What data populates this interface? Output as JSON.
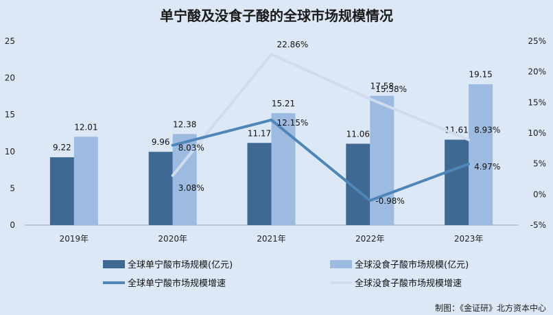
{
  "chart_data": {
    "type": "bar",
    "title": "单宁酸及没食子酸的全球市场规模情况",
    "categories": [
      "2019年",
      "2020年",
      "2021年",
      "2022年",
      "2023年"
    ],
    "series": [
      {
        "name": "全球单宁酸市场规模(亿元)",
        "type": "bar",
        "axis": "left",
        "color": "#3f6892",
        "values": [
          9.22,
          9.96,
          11.17,
          11.06,
          11.61
        ],
        "labels": [
          "9.22",
          "9.96",
          "11.17",
          "11.06",
          "11.61"
        ]
      },
      {
        "name": "全球没食子酸市场规模(亿元)",
        "type": "bar",
        "axis": "left",
        "color": "#9dbbe0",
        "values": [
          12.01,
          12.38,
          15.21,
          17.58,
          19.15
        ],
        "labels": [
          "12.01",
          "12.38",
          "15.21",
          "17.58",
          "19.15"
        ]
      },
      {
        "name": "全球单宁酸市场规模增速",
        "type": "line",
        "axis": "right",
        "color": "#4f86b8",
        "values": [
          null,
          8.03,
          12.15,
          -0.98,
          4.97
        ],
        "labels": [
          "",
          "8.03%",
          "12.15%",
          "-0.98%",
          "4.97%"
        ]
      },
      {
        "name": "全球没食子酸市场规模增速",
        "type": "line",
        "axis": "right",
        "color": "#cfdcee",
        "values": [
          null,
          3.08,
          22.86,
          15.58,
          8.93
        ],
        "labels": [
          "",
          "3.08%",
          "22.86%",
          "15.58%",
          "8.93%"
        ]
      }
    ],
    "y_left": {
      "min": 0,
      "max": 25,
      "ticks": [
        "0",
        "5",
        "10",
        "15",
        "20",
        "25"
      ]
    },
    "y_right": {
      "min": -5,
      "max": 25,
      "ticks": [
        "-5%",
        "0%",
        "5%",
        "10%",
        "15%",
        "20%",
        "25%"
      ]
    },
    "grid": false,
    "legend_position": "bottom"
  },
  "source": "制图：《金证研》北方资本中心"
}
